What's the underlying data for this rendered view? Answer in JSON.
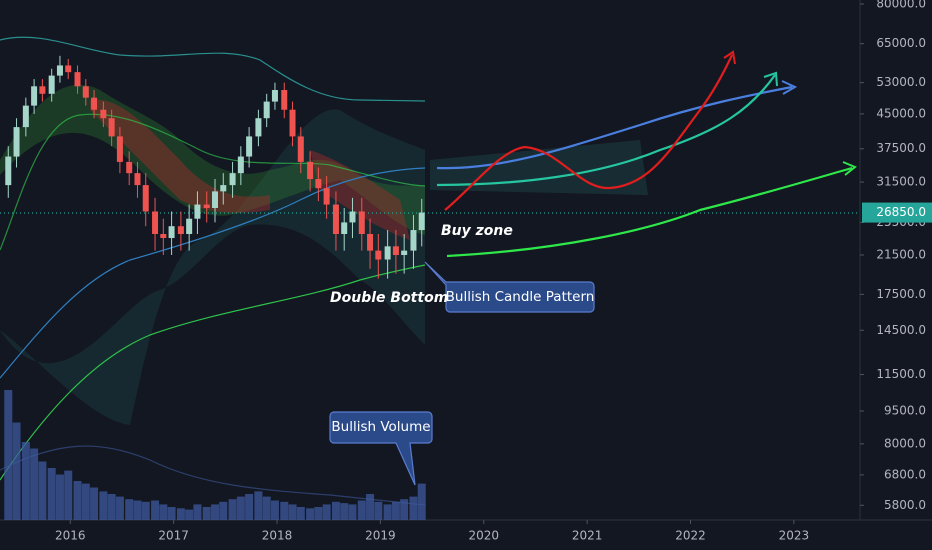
{
  "chart_data": {
    "type": "candlestick",
    "log_scale": true,
    "xlim": [
      2015.32,
      2023.64
    ],
    "ylim": [
      5370,
      81700
    ],
    "xticks": [
      2016,
      2017,
      2018,
      2019,
      2020,
      2021,
      2022,
      2023
    ],
    "yticks": [
      {
        "value": 80000,
        "label": "80000.0"
      },
      {
        "value": 65000,
        "label": "65000.0"
      },
      {
        "value": 53000,
        "label": "53000.0"
      },
      {
        "value": 45000,
        "label": "45000.0"
      },
      {
        "value": 37500,
        "label": "37500.0"
      },
      {
        "value": 31500,
        "label": "31500.0"
      },
      {
        "value": 25500,
        "label": "25500.0"
      },
      {
        "value": 21500,
        "label": "21500.0"
      },
      {
        "value": 17500,
        "label": "17500.0"
      },
      {
        "value": 14500,
        "label": "14500.0"
      },
      {
        "value": 11500,
        "label": "11500.0"
      },
      {
        "value": 9500,
        "label": "9500.0"
      },
      {
        "value": 8000,
        "label": "8000.0"
      },
      {
        "value": 6800,
        "label": "6800.0"
      },
      {
        "value": 5800,
        "label": "5800.0"
      }
    ],
    "last_price": {
      "value": 26850,
      "label": "26850.0",
      "color": "#26a69a"
    },
    "up_color": "#a5d6c9",
    "down_color": "#ef5350",
    "volume_color": "#3d5a9e",
    "x": [
      2015.4,
      2015.48,
      2015.57,
      2015.65,
      2015.73,
      2015.82,
      2015.9,
      2015.98,
      2016.07,
      2016.15,
      2016.23,
      2016.32,
      2016.4,
      2016.48,
      2016.57,
      2016.65,
      2016.73,
      2016.82,
      2016.9,
      2016.98,
      2017.07,
      2017.15,
      2017.23,
      2017.32,
      2017.4,
      2017.48,
      2017.57,
      2017.65,
      2017.73,
      2017.82,
      2017.9,
      2017.98,
      2018.07,
      2018.15,
      2018.23,
      2018.32,
      2018.4,
      2018.48,
      2018.57,
      2018.65,
      2018.73,
      2018.82,
      2018.9,
      2018.98,
      2019.07,
      2019.15,
      2019.23,
      2019.32,
      2019.4
    ],
    "open": [
      31000,
      36000,
      42000,
      47000,
      52000,
      50000,
      55000,
      58000,
      56000,
      52000,
      49000,
      46000,
      44000,
      40000,
      35000,
      33000,
      31000,
      27000,
      24000,
      23500,
      25000,
      24000,
      26000,
      28000,
      27500,
      30000,
      31000,
      33000,
      36000,
      40000,
      44000,
      48000,
      51000,
      46000,
      40000,
      35000,
      32000,
      30500,
      28000,
      24000,
      25500,
      27000,
      24000,
      22000,
      21000,
      22500,
      21500,
      22000,
      24500
    ],
    "high": [
      38000,
      44000,
      49000,
      54000,
      54000,
      57000,
      61000,
      60000,
      58000,
      54000,
      51000,
      48000,
      46000,
      42000,
      37000,
      35000,
      33000,
      29000,
      26000,
      27000,
      27000,
      28000,
      30000,
      30000,
      32000,
      33000,
      35000,
      38000,
      42000,
      46000,
      50000,
      53000,
      53000,
      48000,
      42000,
      37000,
      34000,
      32500,
      30000,
      27500,
      29000,
      29000,
      26000,
      24000,
      24500,
      24500,
      24000,
      26500,
      28850
    ],
    "low": [
      29000,
      34000,
      40000,
      45000,
      48000,
      48000,
      53000,
      54000,
      50000,
      47000,
      44000,
      42000,
      38000,
      33000,
      31000,
      29000,
      25000,
      22000,
      21500,
      21500,
      22000,
      22000,
      24000,
      25500,
      25500,
      28000,
      29000,
      31000,
      34000,
      38000,
      42000,
      46000,
      44000,
      38000,
      33000,
      30000,
      28500,
      26000,
      22000,
      22000,
      23500,
      22000,
      20000,
      19000,
      19000,
      19500,
      19500,
      20000,
      22500
    ],
    "close": [
      36000,
      42000,
      47000,
      52000,
      50000,
      55000,
      58000,
      56000,
      52000,
      49000,
      46000,
      44000,
      40000,
      35000,
      33000,
      31000,
      27000,
      24000,
      23500,
      25000,
      24000,
      26000,
      28000,
      27500,
      30000,
      31000,
      33000,
      36000,
      40000,
      44000,
      48000,
      51000,
      46000,
      40000,
      35000,
      32000,
      30500,
      28000,
      24000,
      25500,
      27000,
      24000,
      22000,
      21000,
      22500,
      21500,
      22000,
      24500,
      26850
    ],
    "volume": [
      100,
      75,
      60,
      55,
      45,
      40,
      35,
      38,
      30,
      28,
      25,
      22,
      20,
      18,
      16,
      15,
      14,
      15,
      12,
      10,
      9,
      8,
      12,
      10,
      12,
      14,
      16,
      18,
      20,
      22,
      18,
      15,
      14,
      12,
      10,
      9,
      10,
      12,
      14,
      13,
      12,
      15,
      20,
      14,
      12,
      14,
      16,
      18,
      28
    ],
    "annotations": {
      "buy_zone": "Buy zone",
      "double_bottom": "Double Bottom",
      "candle_pattern": "Bullish Candle Pattern",
      "volume": "Bullish Volume"
    }
  }
}
